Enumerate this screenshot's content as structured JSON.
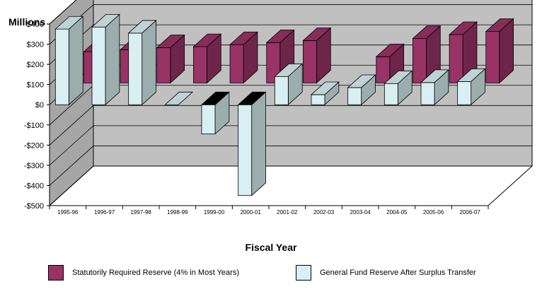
{
  "chart_data": {
    "type": "bar",
    "xlabel": "Fiscal Year",
    "ylabel": "Millions",
    "ylim": [
      -500,
      400
    ],
    "yticks": [
      400,
      300,
      200,
      100,
      0,
      -100,
      -200,
      -300,
      -400,
      -500
    ],
    "ytick_labels": [
      "$400",
      "$300",
      "$200",
      "$100",
      "$0",
      "-$100",
      "-$200",
      "-$300",
      "-$400",
      "-$500"
    ],
    "categories": [
      "1995-96",
      "1996-97",
      "1997-98",
      "1998-99",
      "1999-00",
      "2000-01",
      "2001-02",
      "2002-03",
      "2003-04",
      "2004-05",
      "2005-06",
      "2006-07"
    ],
    "series": [
      {
        "name": "Statutorily Required Reserve (4% in Most Years)",
        "color": "#993366",
        "values": [
          155,
          165,
          175,
          180,
          190,
          200,
          210,
          0,
          130,
          220,
          240,
          255
        ]
      },
      {
        "name": "General Fund Reserve After Surplus Transfer",
        "color": "#d9f0f2",
        "values": [
          375,
          385,
          355,
          0,
          -145,
          -450,
          140,
          50,
          85,
          105,
          110,
          115
        ]
      }
    ],
    "grid": true,
    "legend_position": "bottom"
  },
  "legend": {
    "items": [
      {
        "label": "Statutorily Required Reserve (4% in Most Years)",
        "color": "#993366"
      },
      {
        "label": "General Fund Reserve After Surplus Transfer",
        "color": "#d9f0f2"
      }
    ]
  }
}
